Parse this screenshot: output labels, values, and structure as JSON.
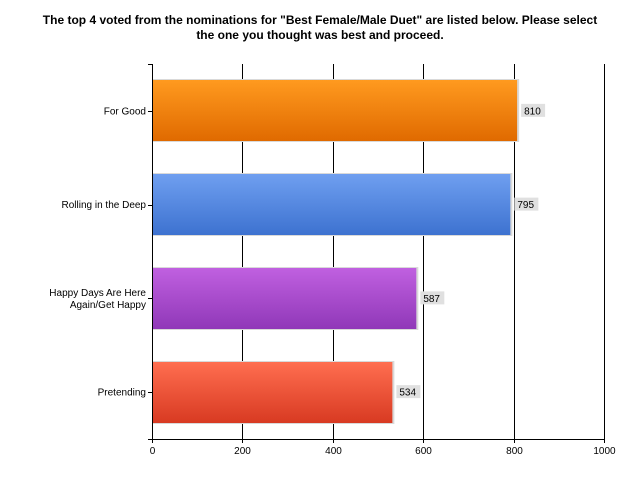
{
  "chart_data": {
    "type": "bar",
    "orientation": "horizontal",
    "title_lines": [
      "The top 4 voted from the nominations for \"Best Female/Male Duet\" are listed below. Please select",
      "the one you thought was best and proceed."
    ],
    "categories": [
      [
        "For Good"
      ],
      [
        "Rolling in the Deep"
      ],
      [
        "Happy Days Are Here",
        "Again/Get Happy"
      ],
      [
        "Pretending"
      ]
    ],
    "values": [
      810,
      795,
      587,
      534
    ],
    "bar_colors": [
      {
        "top": "#ff9a1f",
        "bottom": "#e06a00"
      },
      {
        "top": "#6f9ff0",
        "bottom": "#3d72d0"
      },
      {
        "top": "#c060e0",
        "bottom": "#9038b8"
      },
      {
        "top": "#ff6e50",
        "bottom": "#d83a22"
      }
    ],
    "xlim": [
      0,
      1000
    ],
    "xticks": [
      0,
      200,
      400,
      600,
      800,
      1000
    ],
    "grid": "vertical"
  }
}
